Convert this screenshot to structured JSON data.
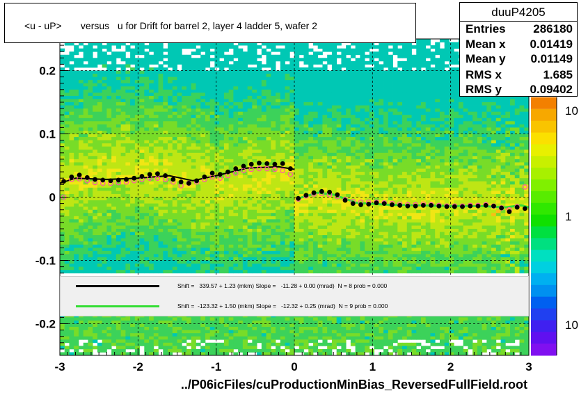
{
  "title": "<u - uP>       versus   u for Drift for barrel 2, layer 4 ladder 5, wafer 2",
  "footer": "../P06icFiles/cuProductionMinBias_ReversedFullField.root",
  "stats": {
    "name": "duuP4205",
    "rows": [
      {
        "key": "Entries",
        "value": "286180"
      },
      {
        "key": "Mean x",
        "value": "0.01419"
      },
      {
        "key": "Mean y",
        "value": "0.01149"
      },
      {
        "key": "RMS x",
        "value": "1.685"
      },
      {
        "key": "RMS y",
        "value": "0.09402"
      }
    ]
  },
  "legend": [
    {
      "text": "Shift =   339.57 + 1.23 (mkm) Slope =   -11.28 + 0.00 (mrad)  N = 8 prob = 0.000",
      "color": "#000000"
    },
    {
      "text": "Shift =  -123.32 + 1.50 (mkm) Slope =   -12.32 + 0.25 (mrad)  N = 9 prob = 0.000",
      "color": "#33dd33"
    }
  ],
  "chart_data": {
    "type": "heatmap",
    "xlim": [
      -3,
      3
    ],
    "ylim": [
      -0.25,
      0.25
    ],
    "x_ticks": [
      "-3",
      "-2",
      "-1",
      "0",
      "1",
      "2",
      "3"
    ],
    "y_ticks": [
      "0.2",
      "0.1",
      "0",
      "-0.1",
      "-0.2"
    ],
    "y_tick_values": [
      0.2,
      0.1,
      0,
      -0.1,
      -0.2
    ],
    "grid": true,
    "colorbar_labels": [
      "10",
      "1",
      "10"
    ],
    "profile_black": {
      "x": [
        -2.95,
        -2.85,
        -2.75,
        -2.65,
        -2.55,
        -2.45,
        -2.35,
        -2.25,
        -2.15,
        -2.05,
        -1.95,
        -1.85,
        -1.75,
        -1.65,
        -1.55,
        -1.45,
        -1.35,
        -1.25,
        -1.15,
        -1.05,
        -0.95,
        -0.85,
        -0.75,
        -0.65,
        -0.55,
        -0.45,
        -0.35,
        -0.25,
        -0.15,
        -0.05,
        0.05,
        0.15,
        0.25,
        0.35,
        0.45,
        0.55,
        0.65,
        0.75,
        0.85,
        0.95,
        1.05,
        1.15,
        1.25,
        1.35,
        1.45,
        1.55,
        1.65,
        1.75,
        1.85,
        1.95,
        2.05,
        2.15,
        2.25,
        2.35,
        2.45,
        2.55,
        2.65,
        2.75,
        2.85,
        2.95
      ],
      "y": [
        0.025,
        0.032,
        0.035,
        0.031,
        0.028,
        0.027,
        0.026,
        0.027,
        0.028,
        0.03,
        0.033,
        0.036,
        0.037,
        0.034,
        0.028,
        0.024,
        0.022,
        0.026,
        0.032,
        0.038,
        0.036,
        0.04,
        0.045,
        0.049,
        0.052,
        0.054,
        0.053,
        0.052,
        0.053,
        0.045,
        -0.002,
        0.003,
        0.007,
        0.009,
        0.008,
        0.004,
        -0.005,
        -0.01,
        -0.012,
        -0.011,
        -0.009,
        -0.01,
        -0.012,
        -0.013,
        -0.014,
        -0.014,
        -0.013,
        -0.013,
        -0.014,
        -0.015,
        -0.015,
        -0.015,
        -0.014,
        -0.014,
        -0.013,
        -0.014,
        -0.017,
        -0.023,
        -0.016,
        -0.018
      ]
    },
    "profile_pink": {
      "x": [
        -2.95,
        -2.85,
        -2.75,
        -2.65,
        -2.55,
        -2.45,
        -2.35,
        -2.25,
        -2.15,
        -2.05,
        -1.95,
        -1.85,
        -1.75,
        -1.65,
        -1.55,
        -1.45,
        -1.35,
        -1.25,
        -1.15,
        -1.05,
        -0.95,
        -0.85,
        -0.75,
        -0.65,
        -0.55,
        -0.45,
        -0.35,
        -0.25,
        -0.15,
        -0.05,
        0.05,
        0.15,
        0.25,
        0.35,
        0.45,
        0.55,
        0.65,
        0.75,
        0.85,
        0.95,
        1.05,
        1.15,
        1.25,
        1.35,
        1.45,
        1.55,
        1.65,
        1.75,
        1.85,
        1.95,
        2.05,
        2.15,
        2.25,
        2.35,
        2.45,
        2.55,
        2.65,
        2.75,
        2.85,
        2.95
      ],
      "y": [
        0.0,
        0.028,
        0.029,
        0.026,
        0.023,
        0.022,
        0.022,
        0.023,
        0.024,
        0.026,
        0.028,
        0.03,
        0.03,
        0.028,
        0.024,
        0.018,
        0.022,
        0.024,
        0.028,
        0.032,
        0.03,
        0.034,
        0.038,
        0.042,
        0.044,
        0.045,
        0.045,
        0.044,
        0.042,
        0.036,
        -0.003,
        0.002,
        0.005,
        0.006,
        0.004,
        0.001,
        -0.004,
        -0.007,
        -0.008,
        -0.008,
        -0.008,
        -0.009,
        -0.01,
        -0.011,
        -0.012,
        -0.012,
        -0.011,
        -0.012,
        -0.013,
        -0.014,
        -0.014,
        -0.014,
        -0.013,
        -0.013,
        -0.012,
        -0.014,
        -0.017,
        -0.02,
        -0.015,
        0.016
      ]
    },
    "fit_black": {
      "x": [
        -3.0,
        -2.8,
        -2.4,
        -2.0,
        -1.6,
        -1.3,
        -1.0,
        -0.6,
        -0.2,
        0.0
      ],
      "y": [
        0.022,
        0.03,
        0.028,
        0.03,
        0.034,
        0.026,
        0.034,
        0.046,
        0.048,
        0.044
      ]
    },
    "fit_green": {
      "x": [
        0.05,
        0.3,
        0.5,
        0.8,
        1.2,
        1.6,
        2.0,
        2.4,
        2.7,
        2.9,
        3.0
      ],
      "y": [
        -0.002,
        0.007,
        0.004,
        -0.009,
        -0.012,
        -0.013,
        -0.014,
        -0.014,
        -0.016,
        -0.013,
        -0.016
      ]
    }
  }
}
